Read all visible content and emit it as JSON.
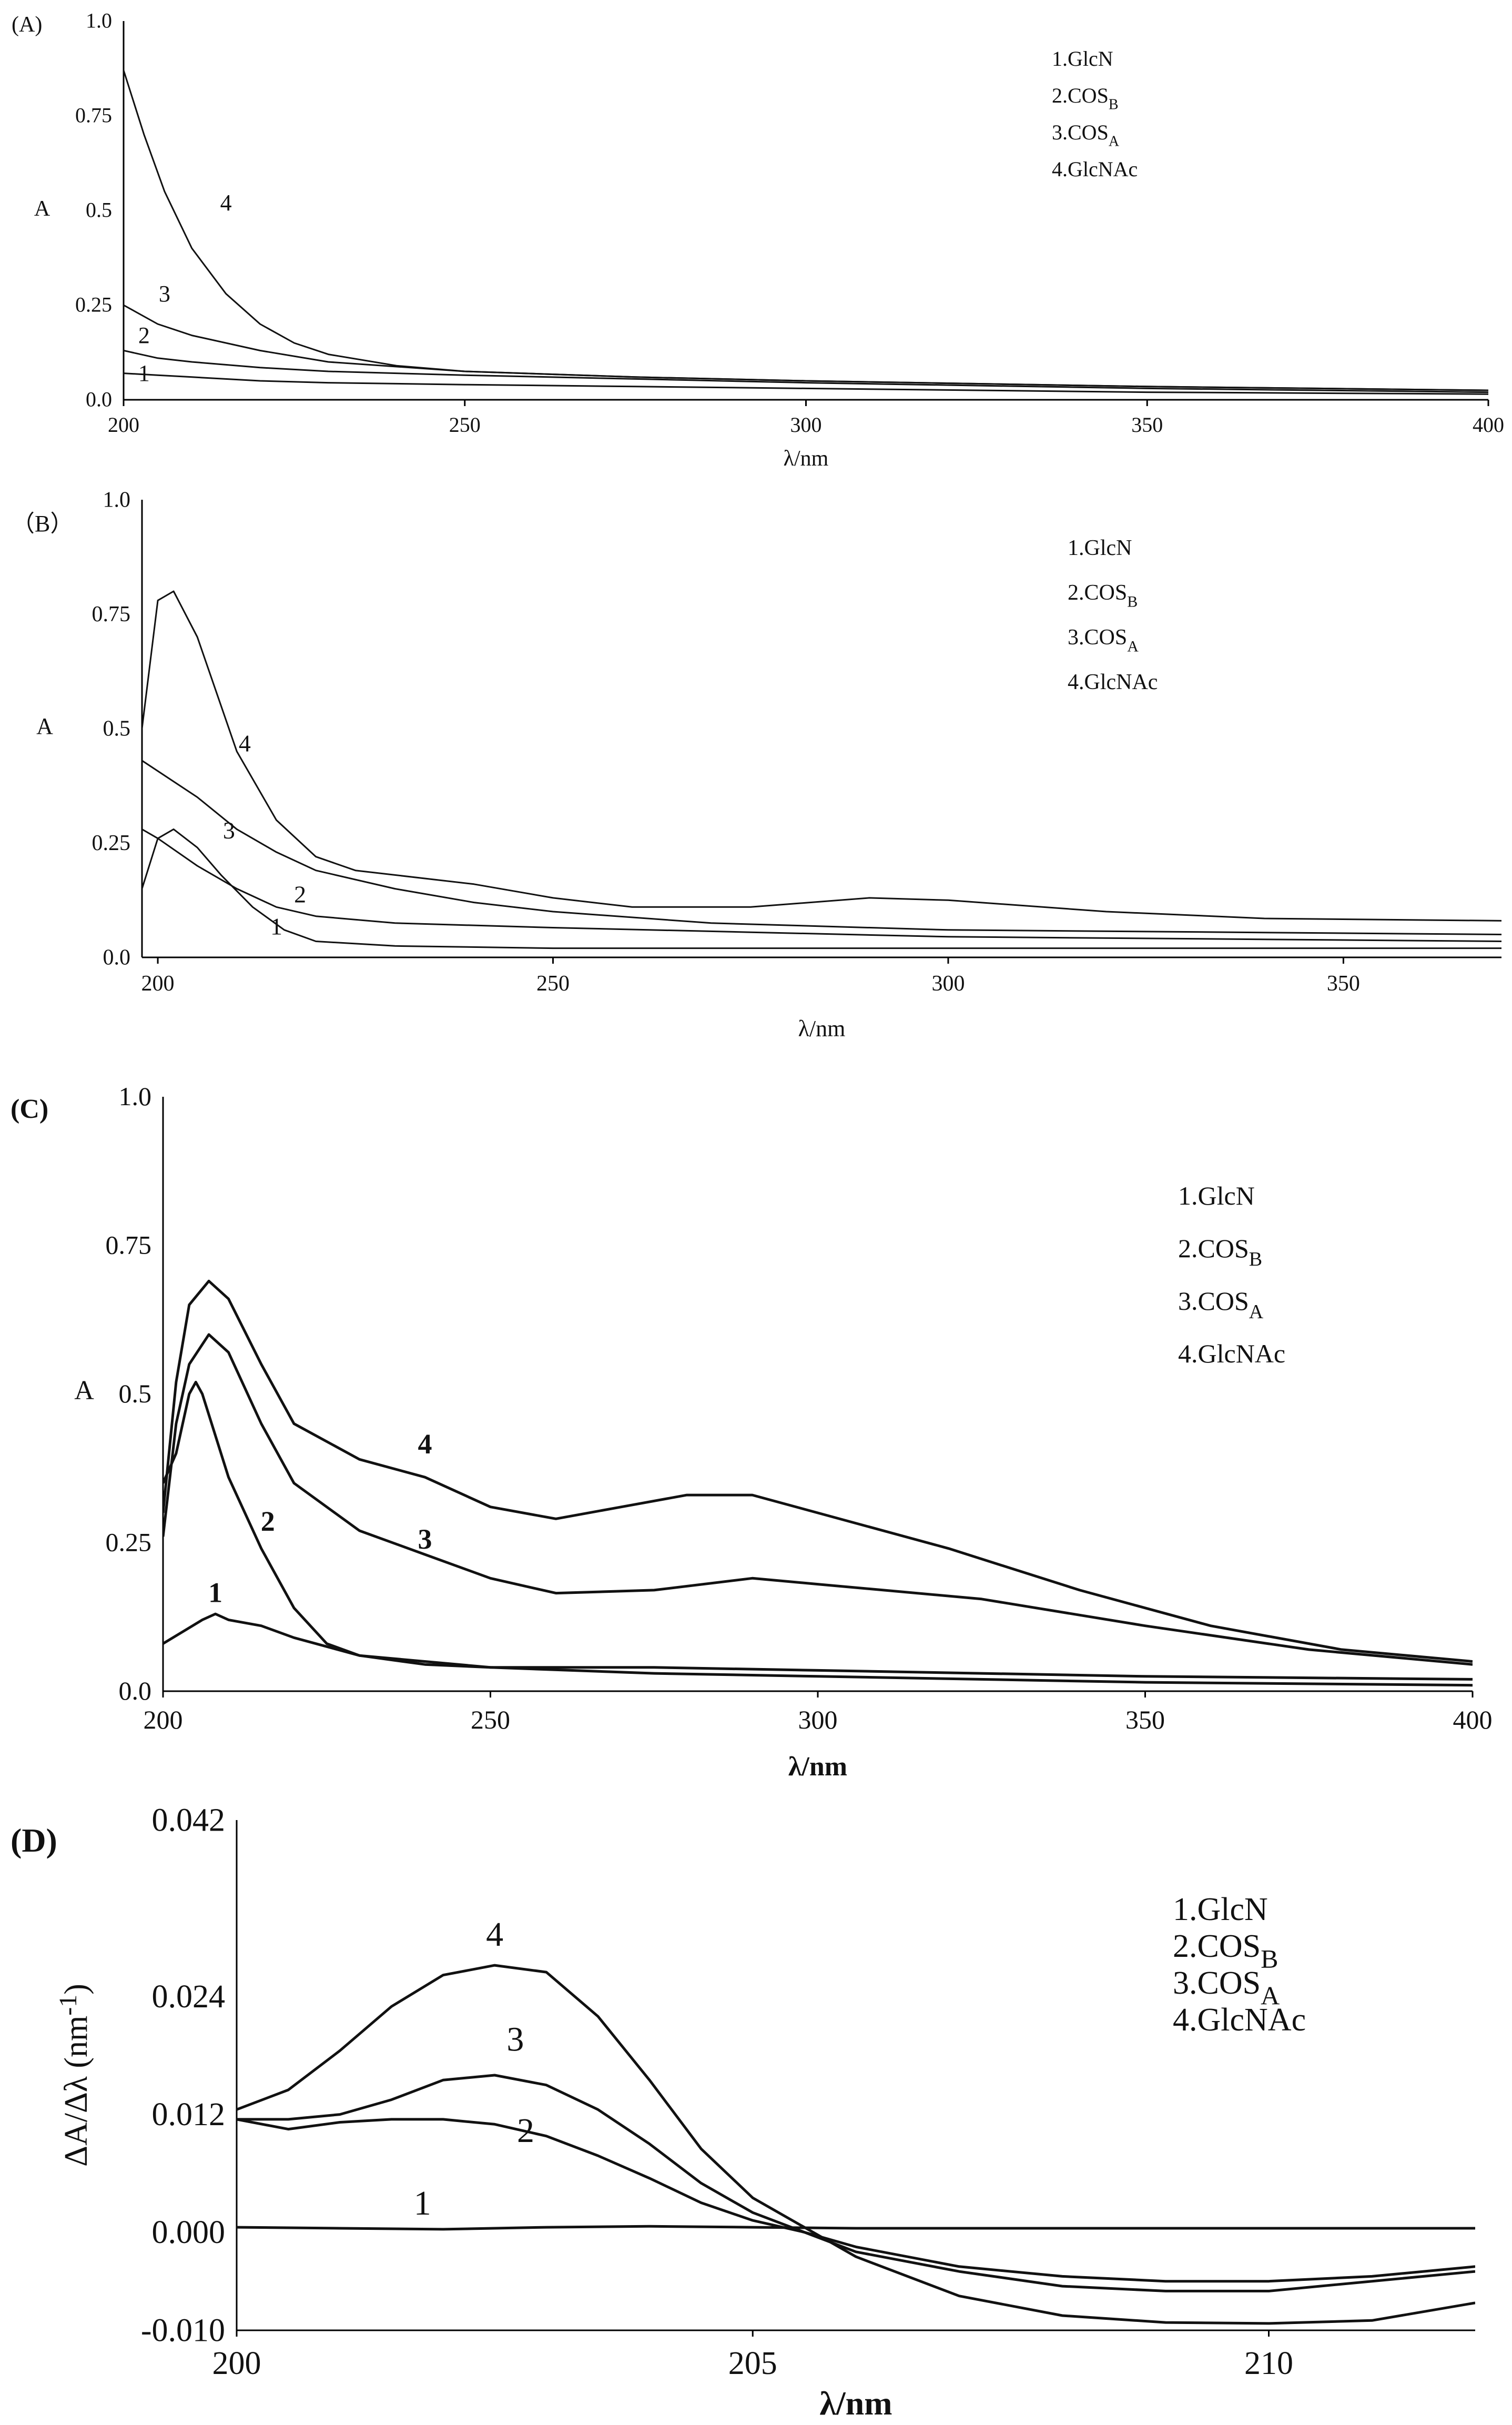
{
  "chart_data": [
    {
      "panel_label": "(A)",
      "type": "line",
      "xlabel": "λ/nm",
      "ylabel": "A",
      "xlim": [
        200,
        400
      ],
      "ylim": [
        0,
        1.0
      ],
      "xticks": [
        200,
        250,
        300,
        350,
        400
      ],
      "yticks": [
        0.0,
        0.25,
        0.5,
        0.75,
        1.0
      ],
      "ytick_labels": [
        "0.0",
        "0.25",
        "0.5",
        "0.75",
        "1.0"
      ],
      "grid": false,
      "legend": [
        {
          "num": "1.",
          "base": "GlcN",
          "sub": ""
        },
        {
          "num": "2.",
          "base": "COS",
          "sub": "B"
        },
        {
          "num": "3.",
          "base": "COS",
          "sub": "A"
        },
        {
          "num": "4.",
          "base": "GlcNAc",
          "sub": ""
        }
      ],
      "legend_position": "top-right",
      "series": [
        {
          "label": "1",
          "x": [
            200,
            205,
            210,
            220,
            230,
            250,
            275,
            300,
            350,
            400
          ],
          "y": [
            0.07,
            0.065,
            0.06,
            0.05,
            0.045,
            0.04,
            0.035,
            0.03,
            0.02,
            0.015
          ]
        },
        {
          "label": "2",
          "x": [
            200,
            205,
            210,
            220,
            230,
            250,
            275,
            300,
            350,
            400
          ],
          "y": [
            0.13,
            0.11,
            0.1,
            0.085,
            0.075,
            0.065,
            0.055,
            0.045,
            0.03,
            0.02
          ]
        },
        {
          "label": "3",
          "x": [
            200,
            205,
            210,
            220,
            230,
            250,
            275,
            300,
            350,
            400
          ],
          "y": [
            0.25,
            0.2,
            0.17,
            0.13,
            0.1,
            0.075,
            0.06,
            0.05,
            0.035,
            0.025
          ]
        },
        {
          "label": "4",
          "x": [
            200,
            203,
            206,
            210,
            215,
            220,
            225,
            230,
            240,
            250,
            275,
            300,
            350,
            400
          ],
          "y": [
            0.87,
            0.7,
            0.55,
            0.4,
            0.28,
            0.2,
            0.15,
            0.12,
            0.09,
            0.075,
            0.06,
            0.05,
            0.035,
            0.025
          ]
        }
      ],
      "curve_labels": [
        {
          "text": "4",
          "x": 215,
          "y": 0.5
        },
        {
          "text": "3",
          "x": 206,
          "y": 0.26
        },
        {
          "text": "2",
          "x": 203,
          "y": 0.15
        },
        {
          "text": "1",
          "x": 203,
          "y": 0.05
        }
      ]
    },
    {
      "panel_label": "（B）",
      "type": "line",
      "xlabel": "λ/nm",
      "ylabel": "A",
      "xlim": [
        198,
        370
      ],
      "ylim": [
        0,
        1.0
      ],
      "xticks": [
        200,
        250,
        300,
        350
      ],
      "yticks": [
        0.0,
        0.25,
        0.5,
        0.75,
        1.0
      ],
      "ytick_labels": [
        "0.0",
        "0.25",
        "0.5",
        "0.75",
        "1.0"
      ],
      "grid": false,
      "legend": [
        {
          "num": "1.",
          "base": "GlcN",
          "sub": ""
        },
        {
          "num": "2.",
          "base": "COS",
          "sub": "B"
        },
        {
          "num": "3.",
          "base": "COS",
          "sub": "A"
        },
        {
          "num": "4.",
          "base": "GlcNAc",
          "sub": ""
        }
      ],
      "legend_position": "top-right",
      "series": [
        {
          "label": "1",
          "x": [
            198,
            200,
            202,
            205,
            208,
            212,
            216,
            220,
            230,
            250,
            300,
            370
          ],
          "y": [
            0.15,
            0.26,
            0.28,
            0.24,
            0.18,
            0.11,
            0.06,
            0.035,
            0.025,
            0.02,
            0.02,
            0.02
          ]
        },
        {
          "label": "2",
          "x": [
            198,
            200,
            205,
            210,
            215,
            220,
            230,
            250,
            275,
            300,
            370
          ],
          "y": [
            0.28,
            0.26,
            0.2,
            0.15,
            0.11,
            0.09,
            0.075,
            0.065,
            0.055,
            0.045,
            0.035
          ]
        },
        {
          "label": "3",
          "x": [
            198,
            205,
            210,
            215,
            220,
            230,
            240,
            250,
            270,
            300,
            370
          ],
          "y": [
            0.43,
            0.35,
            0.28,
            0.23,
            0.19,
            0.15,
            0.12,
            0.1,
            0.075,
            0.06,
            0.05
          ]
        },
        {
          "label": "4",
          "x": [
            198,
            200,
            202,
            205,
            210,
            215,
            220,
            225,
            230,
            240,
            250,
            260,
            275,
            290,
            300,
            320,
            340,
            370
          ],
          "y": [
            0.5,
            0.78,
            0.8,
            0.7,
            0.45,
            0.3,
            0.22,
            0.19,
            0.18,
            0.16,
            0.13,
            0.11,
            0.11,
            0.13,
            0.125,
            0.1,
            0.085,
            0.08
          ]
        }
      ],
      "curve_labels": [
        {
          "text": "4",
          "x": 211,
          "y": 0.45
        },
        {
          "text": "3",
          "x": 209,
          "y": 0.26
        },
        {
          "text": "2",
          "x": 218,
          "y": 0.12
        },
        {
          "text": "1",
          "x": 215,
          "y": 0.05
        }
      ]
    },
    {
      "panel_label": "(C)",
      "type": "line",
      "xlabel": "λ/nm",
      "ylabel": "A",
      "xlim": [
        200,
        400
      ],
      "ylim": [
        0,
        1.0
      ],
      "xticks": [
        200,
        250,
        300,
        350,
        400
      ],
      "yticks": [
        0.0,
        0.25,
        0.5,
        0.75,
        1.0
      ],
      "ytick_labels": [
        "0.0",
        "0.25",
        "0.5",
        "0.75",
        "1.0"
      ],
      "grid": false,
      "legend": [
        {
          "num": "1.",
          "base": "GlcN",
          "sub": ""
        },
        {
          "num": "2.",
          "base": "COS",
          "sub": "B"
        },
        {
          "num": "3.",
          "base": "COS",
          "sub": "A"
        },
        {
          "num": "4.",
          "base": "GlcNAc",
          "sub": ""
        }
      ],
      "legend_position": "top-right",
      "series": [
        {
          "label": "1",
          "x": [
            200,
            203,
            206,
            208,
            210,
            215,
            220,
            230,
            250,
            275,
            300,
            350,
            400
          ],
          "y": [
            0.08,
            0.1,
            0.12,
            0.13,
            0.12,
            0.11,
            0.09,
            0.06,
            0.04,
            0.03,
            0.025,
            0.015,
            0.01
          ]
        },
        {
          "label": "2",
          "x": [
            200,
            202,
            204,
            205,
            206,
            208,
            210,
            215,
            220,
            225,
            230,
            240,
            250,
            275,
            300,
            350,
            400
          ],
          "y": [
            0.35,
            0.4,
            0.5,
            0.52,
            0.5,
            0.43,
            0.36,
            0.24,
            0.14,
            0.08,
            0.06,
            0.045,
            0.04,
            0.04,
            0.035,
            0.025,
            0.02
          ]
        },
        {
          "label": "3",
          "x": [
            200,
            202,
            204,
            207,
            210,
            215,
            220,
            230,
            240,
            250,
            260,
            275,
            290,
            300,
            325,
            350,
            375,
            400
          ],
          "y": [
            0.26,
            0.45,
            0.55,
            0.6,
            0.57,
            0.45,
            0.35,
            0.27,
            0.23,
            0.19,
            0.165,
            0.17,
            0.19,
            0.18,
            0.155,
            0.11,
            0.07,
            0.045
          ]
        },
        {
          "label": "4",
          "x": [
            200,
            202,
            204,
            207,
            210,
            215,
            220,
            230,
            240,
            250,
            260,
            270,
            280,
            290,
            300,
            320,
            340,
            360,
            380,
            400
          ],
          "y": [
            0.3,
            0.52,
            0.65,
            0.69,
            0.66,
            0.55,
            0.45,
            0.39,
            0.36,
            0.31,
            0.29,
            0.31,
            0.33,
            0.33,
            0.3,
            0.24,
            0.17,
            0.11,
            0.07,
            0.05
          ]
        }
      ],
      "curve_labels": [
        {
          "text": "4",
          "x": 240,
          "y": 0.4
        },
        {
          "text": "3",
          "x": 240,
          "y": 0.24
        },
        {
          "text": "2",
          "x": 216,
          "y": 0.27
        },
        {
          "text": "1",
          "x": 208,
          "y": 0.15
        }
      ]
    },
    {
      "panel_label": "(D)",
      "type": "line",
      "xlabel": "λ/nm",
      "ylabel": "ΔA/Δλ",
      "ylabel_unit": "(nm",
      "ylabel_unit_sup": "-1",
      "ylabel_unit_close": ")",
      "xlim": [
        200,
        212
      ],
      "ylim": [
        -0.01,
        0.042
      ],
      "xticks": [
        200,
        205,
        210
      ],
      "yticks": [
        -0.01,
        0.0,
        0.012,
        0.024,
        0.042
      ],
      "ytick_labels": [
        "-0.010",
        "0.000",
        "0.012",
        "0.024",
        "0.042"
      ],
      "grid": false,
      "legend": [
        {
          "num": "1.",
          "base": "GlcN",
          "sub": ""
        },
        {
          "num": "2.",
          "base": "COS",
          "sub": "B"
        },
        {
          "num": "3.",
          "base": "COS",
          "sub": "A"
        },
        {
          "num": "4.",
          "base": "GlcNAc",
          "sub": ""
        }
      ],
      "legend_position": "top-right",
      "series": [
        {
          "label": "1",
          "x": [
            200,
            201,
            202,
            203,
            204,
            205,
            206,
            207,
            208,
            209,
            210,
            211,
            212
          ],
          "y": [
            0.0005,
            0.0004,
            0.0003,
            0.0005,
            0.0006,
            0.0005,
            0.0004,
            0.0004,
            0.0004,
            0.0004,
            0.0004,
            0.0004,
            0.0004
          ]
        },
        {
          "label": "2",
          "x": [
            200,
            200.5,
            201,
            201.5,
            202,
            202.5,
            203,
            203.5,
            204,
            204.5,
            205,
            205.5,
            206,
            207,
            208,
            209,
            210,
            211,
            212
          ],
          "y": [
            0.0115,
            0.0105,
            0.0112,
            0.0115,
            0.0115,
            0.011,
            0.0098,
            0.0078,
            0.0055,
            0.003,
            0.0012,
            0.0,
            -0.0015,
            -0.0035,
            -0.0045,
            -0.005,
            -0.005,
            -0.0045,
            -0.0035
          ]
        },
        {
          "label": "3",
          "x": [
            200,
            200.5,
            201,
            201.5,
            202,
            202.5,
            203,
            203.5,
            204,
            204.5,
            205,
            205.5,
            206,
            207,
            208,
            209,
            210,
            211,
            212
          ],
          "y": [
            0.0115,
            0.0115,
            0.012,
            0.0135,
            0.0155,
            0.016,
            0.015,
            0.0125,
            0.009,
            0.005,
            0.002,
            0.0,
            -0.002,
            -0.004,
            -0.0055,
            -0.006,
            -0.006,
            -0.005,
            -0.004
          ]
        },
        {
          "label": "4",
          "x": [
            200,
            200.5,
            201,
            201.5,
            202,
            202.5,
            203,
            203.5,
            204,
            204.5,
            205,
            205.5,
            206,
            207,
            208,
            209,
            210,
            211,
            212
          ],
          "y": [
            0.0125,
            0.0145,
            0.0185,
            0.023,
            0.0262,
            0.0272,
            0.0265,
            0.022,
            0.0155,
            0.0085,
            0.0035,
            0.0005,
            -0.0025,
            -0.0065,
            -0.0085,
            -0.0092,
            -0.0093,
            -0.009,
            -0.0072
          ]
        }
      ],
      "curve_labels": [
        {
          "text": "4",
          "x": 202.5,
          "y": 0.0292
        },
        {
          "text": "3",
          "x": 202.7,
          "y": 0.0185
        },
        {
          "text": "2",
          "x": 202.8,
          "y": 0.0092
        },
        {
          "text": "1",
          "x": 201.8,
          "y": 0.0018
        }
      ]
    }
  ]
}
